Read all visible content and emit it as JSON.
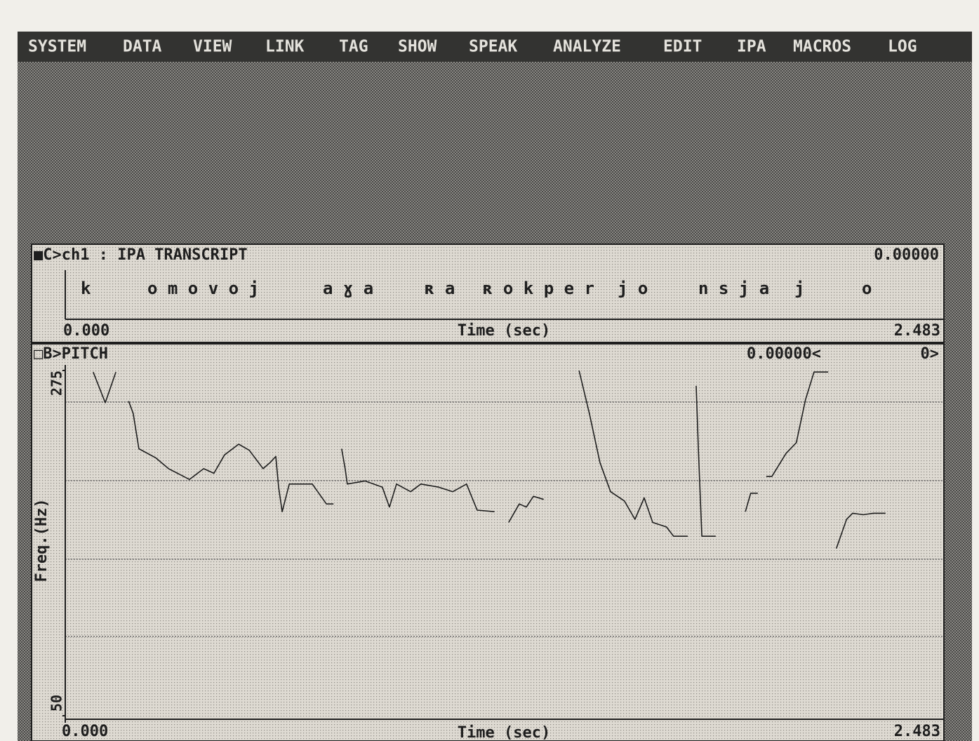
{
  "menu": [
    "SYSTEM",
    "DATA",
    "VIEW",
    "LINK",
    "TAG",
    "SHOW",
    "SPEAK",
    "ANALYZE",
    "EDIT",
    "IPA",
    "MACROS",
    "LOG"
  ],
  "transcript_panel": {
    "title": "■C>ch1 : IPA TRANSCRIPT",
    "cursor": "0.00000",
    "segments": [
      "k",
      "o m o v o j",
      "a ɣ a",
      "ʀ a",
      "ʀ o k p e r",
      "j o",
      "n s j a",
      "j",
      "o"
    ],
    "x_start": "0.000",
    "x_end": "2.483",
    "xlabel": "Time (sec)"
  },
  "chart_data": {
    "type": "line",
    "title": "□B>PITCH",
    "cursor": "0.00000<",
    "marker": "0>",
    "xlabel": "Time (sec)",
    "ylabel": "Freq.(Hz)",
    "color": "#1e1e1e",
    "xlim": [
      0,
      2.483
    ],
    "ylim": [
      50,
      275
    ],
    "xticks": [
      {
        "value": 0,
        "label": "0.000"
      },
      2.483
    ],
    "yticks": [
      50,
      275
    ],
    "x": [
      0.079,
      0.113,
      0.143,
      null,
      0.179,
      0.192,
      0.208,
      0.256,
      0.292,
      0.351,
      0.391,
      0.42,
      0.45,
      0.49,
      0.52,
      0.559,
      0.579,
      0.595,
      0.603,
      0.613,
      0.633,
      0.698,
      0.738,
      0.758,
      null,
      0.781,
      0.791,
      0.797,
      0.847,
      0.896,
      0.916,
      0.936,
      0.976,
      1.005,
      1.055,
      1.095,
      1.134,
      1.164,
      1.213,
      null,
      1.253,
      1.283,
      1.303,
      1.323,
      1.352,
      null,
      1.452,
      1.481,
      1.511,
      1.541,
      1.58,
      1.61,
      1.636,
      1.66,
      1.699,
      1.719,
      1.759,
      null,
      1.783,
      1.789,
      1.799,
      1.838,
      null,
      1.922,
      1.937,
      1.957,
      null,
      1.981,
      1.997,
      2.037,
      2.066,
      2.092,
      2.116,
      2.156,
      null,
      2.179,
      2.208,
      2.225,
      2.255,
      2.284,
      2.318
    ],
    "values": [
      274,
      254,
      274,
      null,
      255,
      247,
      224,
      218,
      211,
      204,
      211,
      208,
      220,
      227,
      223,
      211,
      215,
      219,
      199,
      183,
      201,
      201,
      188,
      188,
      null,
      224,
      211,
      201,
      203,
      199,
      186,
      201,
      196,
      201,
      199,
      196,
      201,
      184,
      183,
      null,
      176,
      188,
      186,
      193,
      191,
      null,
      275,
      247,
      215,
      196,
      190,
      178,
      192,
      176,
      173,
      167,
      167,
      null,
      265,
      224,
      167,
      167,
      null,
      183,
      195,
      195,
      null,
      206,
      206,
      221,
      228,
      256,
      274,
      274,
      null,
      159,
      178,
      182,
      181,
      182,
      182
    ]
  }
}
